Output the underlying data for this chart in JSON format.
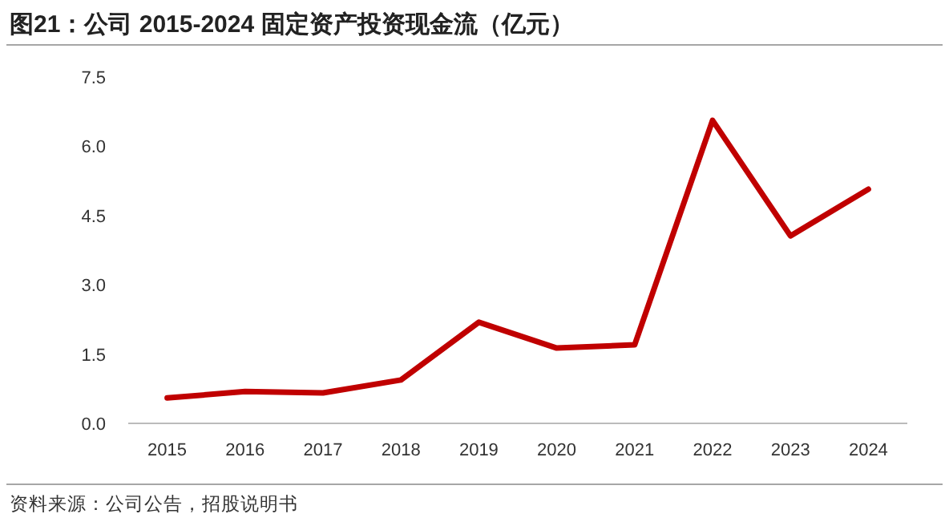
{
  "chart_data": {
    "type": "line",
    "title": "图21：公司 2015-2024 固定资产投资现金流（亿元）",
    "categories": [
      "2015",
      "2016",
      "2017",
      "2018",
      "2019",
      "2020",
      "2021",
      "2022",
      "2023",
      "2024"
    ],
    "series": [
      {
        "color": "#c00000",
        "values": [
          0.55,
          0.69,
          0.66,
          0.94,
          2.19,
          1.63,
          1.7,
          6.56,
          4.06,
          5.07
        ]
      }
    ],
    "ylim": [
      0,
      7.5
    ],
    "yticks": [
      {
        "value": 0,
        "label": "0.0"
      },
      {
        "value": 1.5,
        "label": "1.5"
      },
      {
        "value": 3,
        "label": "3.0"
      },
      {
        "value": 4.5,
        "label": "4.5"
      },
      {
        "value": 6,
        "label": "6.0"
      },
      {
        "value": 7.5,
        "label": "7.5"
      }
    ],
    "grid": false,
    "marker": "none",
    "line_style": "solid",
    "annotations": [
      "资料来源：公司公告，招股说明书"
    ]
  }
}
